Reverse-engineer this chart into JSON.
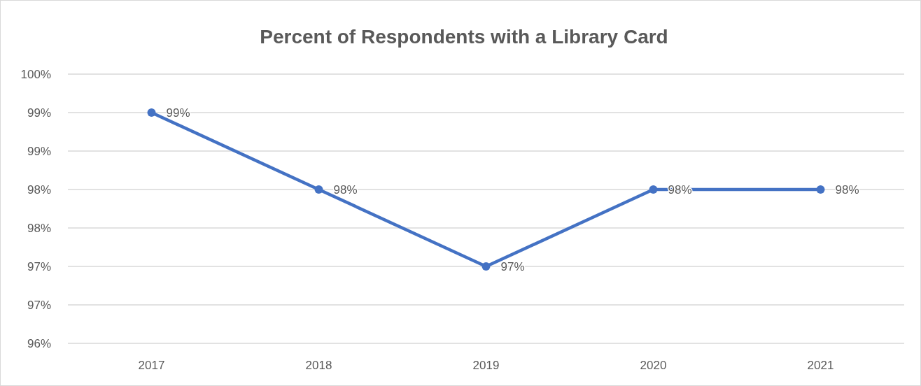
{
  "chart_data": {
    "type": "line",
    "title": "Percent of Respondents with a Library Card",
    "categories": [
      "2017",
      "2018",
      "2019",
      "2020",
      "2021"
    ],
    "values": [
      99,
      98,
      97,
      98,
      98
    ],
    "color": "#4472c4",
    "marker": "circle",
    "line_style": "solid",
    "data_labels": true,
    "value_labels": [
      "99%",
      "98%",
      "97%",
      "98%",
      "98%"
    ],
    "ylim": [
      96,
      99.5
    ],
    "yticks": [
      {
        "value": 96,
        "label": "96%"
      },
      {
        "value": 96.5,
        "label": "97%"
      },
      {
        "value": 97,
        "label": "97%"
      },
      {
        "value": 97.5,
        "label": "98%"
      },
      {
        "value": 98,
        "label": "98%"
      },
      {
        "value": 98.5,
        "label": "99%"
      },
      {
        "value": 99,
        "label": "99%"
      },
      {
        "value": 99.5,
        "label": "100%"
      }
    ],
    "grid": "y"
  }
}
